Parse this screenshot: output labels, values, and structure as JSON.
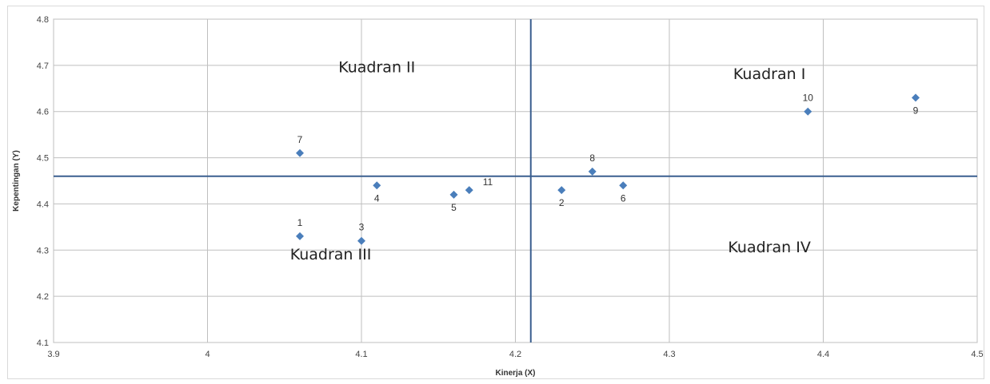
{
  "chart_data": {
    "type": "scatter",
    "title": "",
    "xlabel": "Kinerja (X)",
    "ylabel": "Kepentingan (Y)",
    "xlim": [
      3.9,
      4.5
    ],
    "ylim": [
      4.1,
      4.8
    ],
    "xticks": [
      3.9,
      4.0,
      4.1,
      4.2,
      4.3,
      4.4,
      4.5
    ],
    "yticks": [
      4.1,
      4.2,
      4.3,
      4.4,
      4.5,
      4.6,
      4.7,
      4.8
    ],
    "xtick_labels": [
      "3.9",
      "4",
      "4.1",
      "4.2",
      "4.3",
      "4.4",
      "4.5"
    ],
    "ytick_labels": [
      "4.1",
      "4.2",
      "4.3",
      "4.4",
      "4.5",
      "4.6",
      "4.7",
      "4.8"
    ],
    "grid": true,
    "mean_x": 4.21,
    "mean_y": 4.46,
    "marker_color": "#4a7ebb",
    "line_color": "#3a5f8f",
    "points": [
      {
        "label": "1",
        "x": 4.06,
        "y": 4.33,
        "label_pos": "above"
      },
      {
        "label": "2",
        "x": 4.23,
        "y": 4.43,
        "label_pos": "below"
      },
      {
        "label": "3",
        "x": 4.1,
        "y": 4.32,
        "label_pos": "above"
      },
      {
        "label": "4",
        "x": 4.11,
        "y": 4.44,
        "label_pos": "below"
      },
      {
        "label": "5",
        "x": 4.16,
        "y": 4.42,
        "label_pos": "below"
      },
      {
        "label": "6",
        "x": 4.27,
        "y": 4.44,
        "label_pos": "below"
      },
      {
        "label": "7",
        "x": 4.06,
        "y": 4.51,
        "label_pos": "above"
      },
      {
        "label": "8",
        "x": 4.25,
        "y": 4.47,
        "label_pos": "above"
      },
      {
        "label": "9",
        "x": 4.46,
        "y": 4.63,
        "label_pos": "below"
      },
      {
        "label": "10",
        "x": 4.39,
        "y": 4.6,
        "label_pos": "above"
      },
      {
        "label": "11",
        "x": 4.17,
        "y": 4.43,
        "label_pos": "right"
      }
    ],
    "annotations": [
      {
        "text": "Kuadran I",
        "x": 4.365,
        "y": 4.67
      },
      {
        "text": "Kuadran II",
        "x": 4.11,
        "y": 4.685
      },
      {
        "text": "Kuadran III",
        "x": 4.08,
        "y": 4.28
      },
      {
        "text": "Kuadran IV",
        "x": 4.365,
        "y": 4.295
      }
    ]
  }
}
